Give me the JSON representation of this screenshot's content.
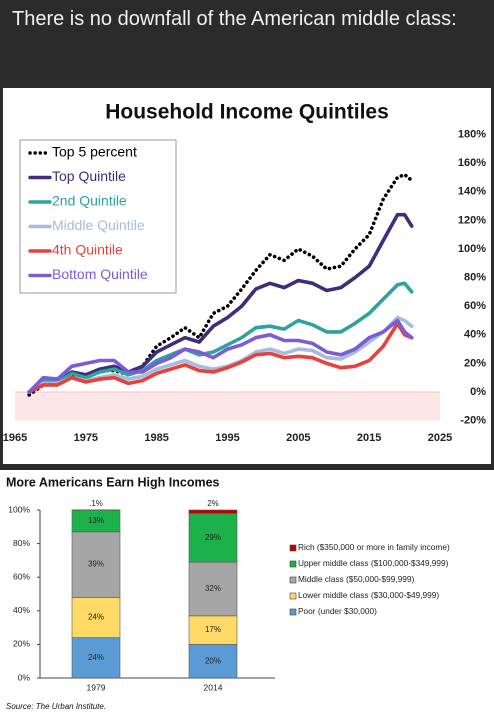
{
  "header": {
    "text": "There is no downfall of the American middle class:"
  },
  "chart_data": [
    {
      "type": "line",
      "title": "Household Income Quintiles",
      "x": [
        1967,
        1969,
        1971,
        1973,
        1975,
        1977,
        1979,
        1981,
        1983,
        1985,
        1987,
        1989,
        1991,
        1993,
        1995,
        1997,
        1999,
        2001,
        2003,
        2005,
        2007,
        2009,
        2011,
        2013,
        2015,
        2017,
        2019,
        2020,
        2021
      ],
      "xlim": [
        1965,
        2025
      ],
      "xticks": [
        1965,
        1975,
        1985,
        1995,
        2005,
        2015,
        2025
      ],
      "ylim": [
        -20,
        180
      ],
      "yticks": [
        {
          "value": -20,
          "label": "-20%"
        },
        {
          "value": 0,
          "label": "0%"
        },
        {
          "value": 20,
          "label": "20%"
        },
        {
          "value": 40,
          "label": "40%"
        },
        {
          "value": 60,
          "label": "60%"
        },
        {
          "value": 80,
          "label": "80%"
        },
        {
          "value": 100,
          "label": "100%"
        },
        {
          "value": 120,
          "label": "120%"
        },
        {
          "value": 140,
          "label": "140%"
        },
        {
          "value": 160,
          "label": "160%"
        },
        {
          "value": 180,
          "label": "180%"
        }
      ],
      "yaxis_position": "right",
      "legend": "upper left",
      "grid": false,
      "series": [
        {
          "name": "Top 5 percent",
          "color": "#000000",
          "style": "dotted",
          "values": [
            -2,
            5,
            5,
            12,
            10,
            15,
            15,
            12,
            18,
            32,
            38,
            45,
            38,
            55,
            60,
            72,
            85,
            96,
            92,
            100,
            95,
            86,
            88,
            100,
            110,
            135,
            150,
            152,
            148
          ]
        },
        {
          "name": "Top Quintile",
          "color": "#3f2d7c",
          "style": "solid",
          "values": [
            0,
            8,
            8,
            14,
            12,
            16,
            18,
            14,
            18,
            28,
            33,
            38,
            35,
            46,
            52,
            60,
            72,
            76,
            73,
            78,
            76,
            71,
            73,
            80,
            88,
            106,
            124,
            124,
            116
          ]
        },
        {
          "name": "2nd Quintile",
          "color": "#2ea39c",
          "style": "solid",
          "values": [
            0,
            8,
            7,
            13,
            10,
            14,
            16,
            12,
            15,
            22,
            26,
            30,
            26,
            28,
            33,
            38,
            45,
            46,
            44,
            50,
            47,
            42,
            42,
            48,
            55,
            65,
            75,
            76,
            70
          ]
        },
        {
          "name": "Middle Quintile",
          "color": "#a5bcdc",
          "style": "solid",
          "values": [
            0,
            6,
            6,
            10,
            8,
            10,
            12,
            9,
            11,
            16,
            19,
            22,
            18,
            16,
            18,
            22,
            28,
            30,
            27,
            30,
            29,
            24,
            23,
            28,
            35,
            42,
            52,
            50,
            46
          ]
        },
        {
          "name": "4th Quintile",
          "color": "#e8413b",
          "style": "solid",
          "values": [
            0,
            5,
            5,
            10,
            7,
            9,
            10,
            6,
            8,
            13,
            16,
            19,
            15,
            14,
            17,
            21,
            26,
            27,
            24,
            25,
            24,
            20,
            17,
            18,
            22,
            32,
            48,
            40,
            38
          ]
        },
        {
          "name": "Bottom Quintile",
          "color": "#7b5cd6",
          "style": "solid",
          "values": [
            0,
            10,
            9,
            18,
            20,
            22,
            22,
            14,
            14,
            20,
            24,
            30,
            28,
            24,
            30,
            33,
            38,
            40,
            36,
            36,
            34,
            28,
            26,
            30,
            38,
            42,
            50,
            42,
            38
          ]
        }
      ]
    },
    {
      "type": "bar",
      "stacked": true,
      "title": "More Americans Earn High Incomes",
      "categories": [
        "1979",
        "2014"
      ],
      "ylim": [
        0,
        100
      ],
      "yticks": [
        {
          "value": 0,
          "label": "0%"
        },
        {
          "value": 20,
          "label": "20%"
        },
        {
          "value": 40,
          "label": "40%"
        },
        {
          "value": 60,
          "label": "60%"
        },
        {
          "value": 80,
          "label": "80%"
        },
        {
          "value": 100,
          "label": "100%"
        }
      ],
      "legend": "right",
      "series": [
        {
          "name": "Poor (under $30,000)",
          "color": "#5b9bd5",
          "values": [
            24,
            20
          ],
          "value_labels": [
            "24%",
            "20%"
          ]
        },
        {
          "name": "Lower middle class ($30,000-$49,999)",
          "color": "#ffd966",
          "values": [
            24,
            17
          ],
          "value_labels": [
            "24%",
            "17%"
          ]
        },
        {
          "name": "Middle class ($50,000-$99,999)",
          "color": "#a6a6a6",
          "values": [
            39,
            32
          ],
          "value_labels": [
            "39%",
            "32%"
          ]
        },
        {
          "name": "Upper middle class ($100,000-$349,999)",
          "color": "#1db14b",
          "values": [
            13,
            29
          ],
          "value_labels": [
            "13%",
            "29%"
          ]
        },
        {
          "name": "Rich ($350,000 or more in family income)",
          "color": "#c00000",
          "values": [
            0.1,
            2
          ],
          "value_labels": [
            ".1%",
            "2%"
          ]
        }
      ],
      "source": "Source: The Urban Institute."
    }
  ]
}
